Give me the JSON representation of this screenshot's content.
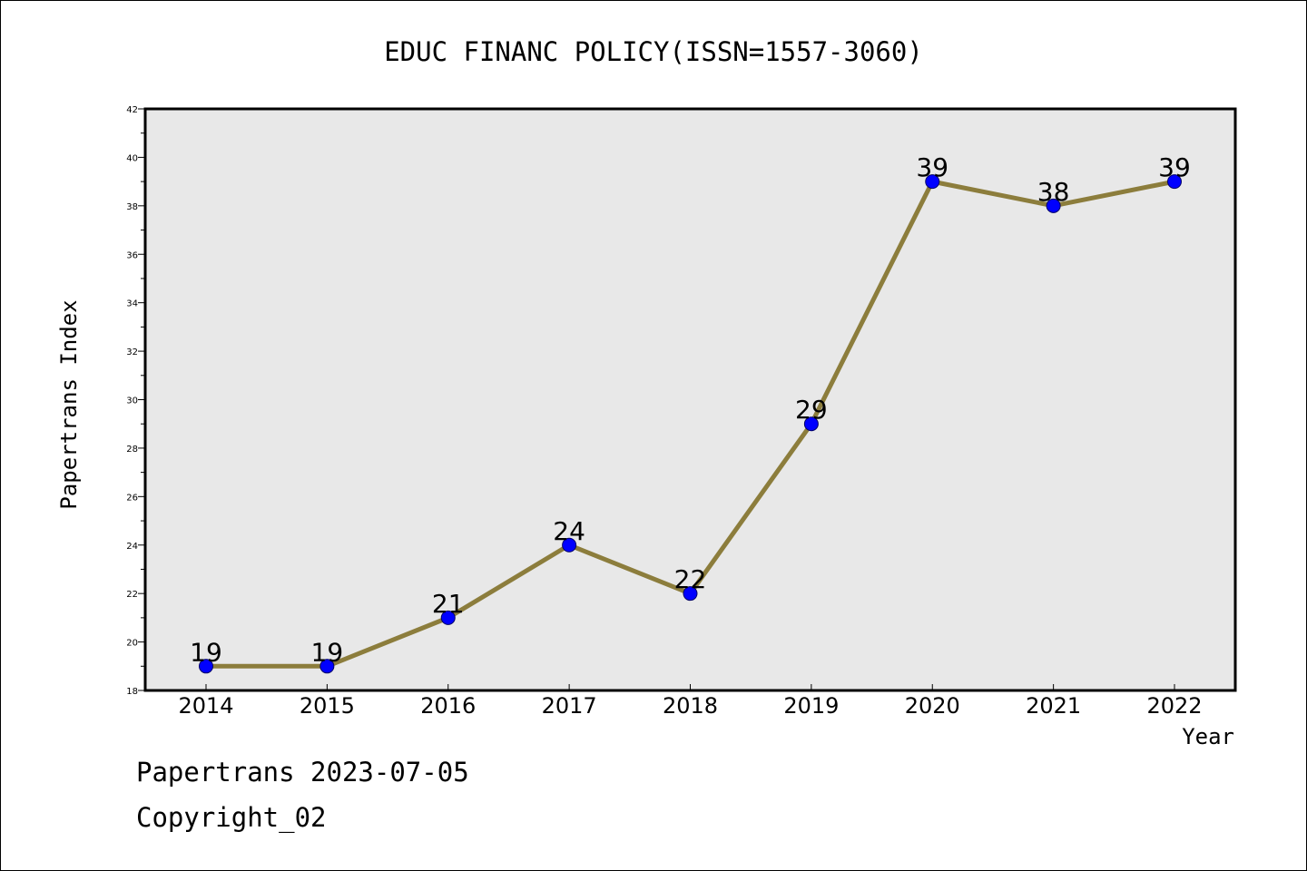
{
  "chart_data": {
    "type": "line",
    "title": "EDUC FINANC POLICY(ISSN=1557-3060)",
    "xlabel": "Year",
    "ylabel": "Papertrans Index",
    "categories": [
      "2014",
      "2015",
      "2016",
      "2017",
      "2018",
      "2019",
      "2020",
      "2021",
      "2022"
    ],
    "series": [
      {
        "values": [
          19,
          19,
          21,
          24,
          22,
          29,
          39,
          38,
          39
        ]
      }
    ],
    "ylim": [
      18,
      42
    ],
    "yticks": [
      18,
      20,
      22,
      24,
      26,
      28,
      30,
      32,
      34,
      36,
      38,
      40,
      42
    ],
    "grid": false,
    "legend": "none",
    "plot_background": "#e8e8e8",
    "line_color": "#8c7d3c",
    "marker_color": "#0000ff"
  },
  "footer": {
    "line1": "Papertrans 2023-07-05",
    "line2": "Copyright_02"
  }
}
